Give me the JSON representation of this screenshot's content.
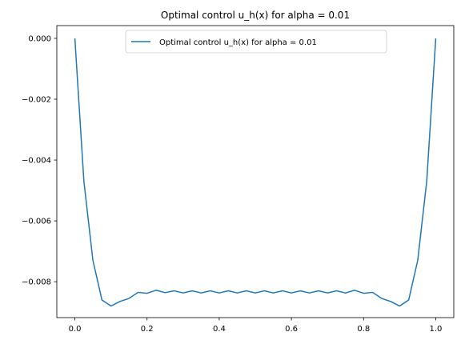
{
  "chart_data": {
    "type": "line",
    "title": "Optimal control u_h(x) for alpha = 0.01",
    "xlabel": "",
    "ylabel": "",
    "xlim": [
      -0.05,
      1.05
    ],
    "ylim": [
      -0.00918,
      0.00042
    ],
    "grid": false,
    "legend_position": "top-center",
    "x_ticks": [
      0.0,
      0.2,
      0.4,
      0.6,
      0.8,
      1.0
    ],
    "x_tick_labels": [
      "0.0",
      "0.2",
      "0.4",
      "0.6",
      "0.8",
      "1.0"
    ],
    "y_ticks": [
      0.0,
      -0.002,
      -0.004,
      -0.006,
      -0.008
    ],
    "y_tick_labels": [
      "0.000",
      "−0.002",
      "−0.004",
      "−0.006",
      "−0.008"
    ],
    "series": [
      {
        "name": "Optimal control u_h(x) for alpha = 0.01",
        "color": "#1f77b4",
        "x": [
          0.0,
          0.025,
          0.05,
          0.075,
          0.1,
          0.125,
          0.15,
          0.175,
          0.2,
          0.225,
          0.25,
          0.275,
          0.3,
          0.325,
          0.35,
          0.375,
          0.4,
          0.425,
          0.45,
          0.475,
          0.5,
          0.525,
          0.55,
          0.575,
          0.6,
          0.625,
          0.65,
          0.675,
          0.7,
          0.725,
          0.75,
          0.775,
          0.8,
          0.825,
          0.85,
          0.875,
          0.9,
          0.925,
          0.95,
          0.975,
          1.0
        ],
        "y": [
          0.0,
          -0.0047,
          -0.0073,
          -0.0086,
          -0.0088,
          -0.00865,
          -0.00855,
          -0.00835,
          -0.00838,
          -0.00828,
          -0.00836,
          -0.0083,
          -0.00837,
          -0.0083,
          -0.00837,
          -0.0083,
          -0.00837,
          -0.0083,
          -0.00837,
          -0.0083,
          -0.00837,
          -0.0083,
          -0.00837,
          -0.0083,
          -0.00837,
          -0.0083,
          -0.00837,
          -0.0083,
          -0.00837,
          -0.0083,
          -0.00837,
          -0.00828,
          -0.00838,
          -0.00835,
          -0.00855,
          -0.00865,
          -0.0088,
          -0.0086,
          -0.0073,
          -0.0047,
          0.0
        ]
      }
    ]
  }
}
